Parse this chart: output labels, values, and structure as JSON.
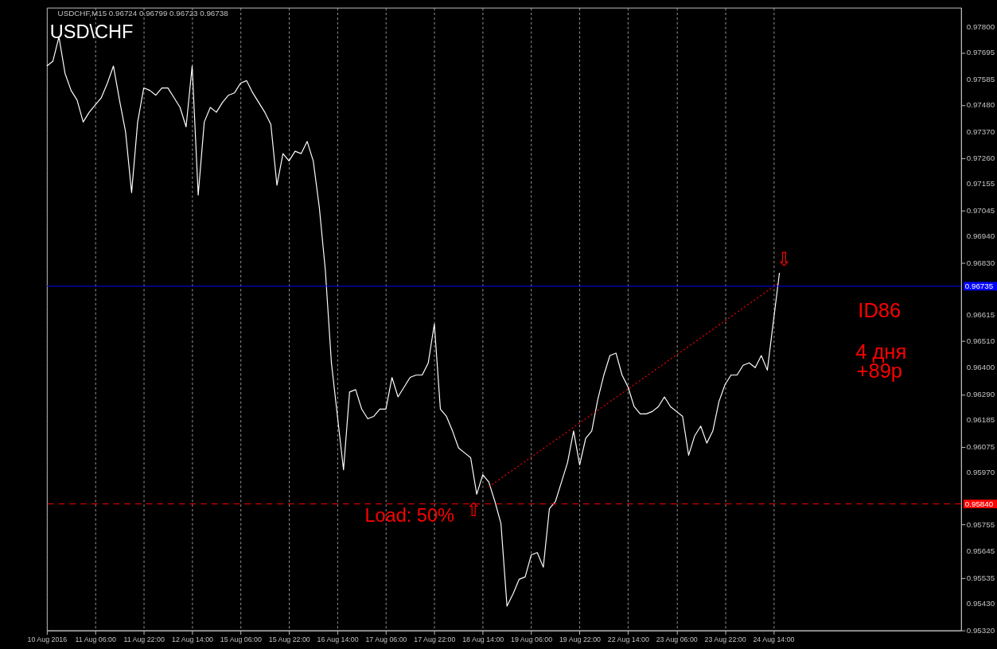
{
  "chart_data": {
    "type": "line",
    "title": "USD\\CHF",
    "subtitle": "USDCHF,M15  0.96724 0.96799 0.96723 0.96738",
    "categories": [
      "10 Aug 2016",
      null,
      null,
      null,
      null,
      null,
      null,
      null,
      "11 Aug 06:00",
      null,
      null,
      null,
      null,
      null,
      null,
      null,
      "11 Aug 22:00",
      null,
      null,
      null,
      null,
      null,
      null,
      null,
      "12 Aug 14:00",
      null,
      null,
      null,
      null,
      null,
      null,
      null,
      "15 Aug 06:00",
      null,
      null,
      null,
      null,
      null,
      null,
      null,
      "15 Aug 22:00",
      null,
      null,
      null,
      null,
      null,
      null,
      null,
      "16 Aug 14:00",
      null,
      null,
      null,
      null,
      null,
      null,
      null,
      "17 Aug 06:00",
      null,
      null,
      null,
      null,
      null,
      null,
      null,
      "17 Aug 22:00",
      null,
      null,
      null,
      null,
      null,
      null,
      null,
      "18 Aug 14:00",
      null,
      null,
      null,
      null,
      null,
      null,
      null,
      "19 Aug 06:00",
      null,
      null,
      null,
      null,
      null,
      null,
      null,
      "19 Aug 22:00",
      null,
      null,
      null,
      null,
      null,
      null,
      null,
      "22 Aug 14:00",
      null,
      null,
      null,
      null,
      null,
      null,
      null,
      "23 Aug 06:00",
      null,
      null,
      null,
      null,
      null,
      null,
      null,
      "23 Aug 22:00",
      null,
      null,
      null,
      null,
      null,
      null,
      null,
      "24 Aug 14:00",
      null,
      null,
      null,
      null,
      null,
      null,
      null,
      null,
      null,
      null,
      null,
      null,
      null,
      null,
      null,
      null,
      null,
      null,
      null,
      null,
      null,
      null,
      null,
      null,
      null,
      null,
      null,
      null,
      null,
      null,
      null
    ],
    "ylim": [
      0.9532,
      0.9788
    ],
    "yticks": [
      {
        "value": 0.978,
        "label": "0.97800"
      },
      {
        "value": 0.97695,
        "label": "0.97695"
      },
      {
        "value": 0.97585,
        "label": "0.97585"
      },
      {
        "value": 0.9748,
        "label": "0.97480"
      },
      {
        "value": 0.9737,
        "label": "0.97370"
      },
      {
        "value": 0.9726,
        "label": "0.97260"
      },
      {
        "value": 0.97155,
        "label": "0.97155"
      },
      {
        "value": 0.97045,
        "label": "0.97045"
      },
      {
        "value": 0.9694,
        "label": "0.96940"
      },
      {
        "value": 0.9683,
        "label": "0.96830"
      },
      {
        "value": 0.96615,
        "label": "0.96615"
      },
      {
        "value": 0.9651,
        "label": "0.96510"
      },
      {
        "value": 0.964,
        "label": "0.96400"
      },
      {
        "value": 0.9629,
        "label": "0.96290"
      },
      {
        "value": 0.96185,
        "label": "0.96185"
      },
      {
        "value": 0.96075,
        "label": "0.96075"
      },
      {
        "value": 0.9597,
        "label": "0.95970"
      },
      {
        "value": 0.95755,
        "label": "0.95755"
      },
      {
        "value": 0.95645,
        "label": "0.95645"
      },
      {
        "value": 0.95535,
        "label": "0.95535"
      },
      {
        "value": 0.9543,
        "label": "0.95430"
      },
      {
        "value": 0.9532,
        "label": "0.95320"
      }
    ],
    "grid": "x",
    "marker": "none",
    "series": [
      {
        "color": "#ffffff",
        "line_style": "solid",
        "values": [
          0.9764,
          0.9766,
          0.9776,
          0.9761,
          0.9754,
          0.975,
          0.9741,
          0.9745,
          0.9748,
          0.9751,
          0.9757,
          0.9764,
          0.975,
          0.9737,
          0.9712,
          0.9741,
          0.9755,
          0.9754,
          0.9752,
          0.9755,
          0.9755,
          0.9751,
          0.9747,
          0.9739,
          0.9764,
          0.9711,
          0.9741,
          0.9747,
          0.9745,
          0.9749,
          0.9752,
          0.9753,
          0.9757,
          0.9758,
          0.9753,
          0.9749,
          0.9745,
          0.974,
          0.9715,
          0.9728,
          0.9725,
          0.9729,
          0.9728,
          0.9733,
          0.9725,
          0.9706,
          0.968,
          0.9642,
          0.962,
          0.9598,
          0.963,
          0.9631,
          0.9623,
          0.9619,
          0.962,
          0.9623,
          0.9623,
          0.9636,
          0.9628,
          0.9632,
          0.9636,
          0.9637,
          0.9637,
          0.9642,
          0.9658,
          0.9623,
          0.962,
          0.9614,
          0.9607,
          0.9605,
          0.9603,
          0.9588,
          0.9596,
          0.9593,
          0.9585,
          0.9576,
          0.9542,
          0.9547,
          0.9553,
          0.9554,
          0.9563,
          0.9564,
          0.9558,
          0.9582,
          0.9585,
          0.9593,
          0.9601,
          0.9614,
          0.96,
          0.9611,
          0.9614,
          0.9627,
          0.9637,
          0.9645,
          0.9646,
          0.9637,
          0.9632,
          0.9624,
          0.9621,
          0.9621,
          0.9622,
          0.9624,
          0.9628,
          0.9624,
          0.9622,
          0.962,
          0.9604,
          0.9612,
          0.9616,
          0.9609,
          0.9614,
          0.9626,
          0.9633,
          0.9637,
          0.9637,
          0.9641,
          0.9642,
          0.964,
          0.9645,
          0.9639,
          0.9659,
          0.9679,
          null,
          null,
          null,
          null,
          null,
          null,
          null,
          null,
          null,
          null,
          null,
          null,
          null,
          null,
          null,
          null,
          null,
          null,
          null,
          null,
          null,
          null,
          null,
          null,
          null,
          null,
          null,
          null,
          null,
          null
        ]
      },
      {
        "color": "#ff0000",
        "line_style": "dotted",
        "values": [
          null,
          null,
          null,
          null,
          null,
          null,
          null,
          null,
          null,
          null,
          null,
          null,
          null,
          null,
          null,
          null,
          null,
          null,
          null,
          null,
          null,
          null,
          null,
          null,
          null,
          null,
          null,
          null,
          null,
          null,
          null,
          null,
          null,
          null,
          null,
          null,
          null,
          null,
          null,
          null,
          null,
          null,
          null,
          null,
          null,
          null,
          null,
          null,
          null,
          null,
          null,
          null,
          null,
          null,
          null,
          null,
          null,
          null,
          null,
          null,
          null,
          null,
          null,
          null,
          null,
          null,
          null,
          null,
          null,
          null,
          null,
          null,
          null,
          0.9591,
          null,
          null,
          null,
          null,
          null,
          null,
          null,
          null,
          null,
          null,
          null,
          null,
          null,
          null,
          null,
          null,
          null,
          null,
          null,
          null,
          null,
          null,
          null,
          null,
          null,
          null,
          null,
          null,
          null,
          null,
          null,
          null,
          null,
          null,
          null,
          null,
          null,
          null,
          null,
          null,
          null,
          null,
          null,
          null,
          null,
          null,
          null,
          0.9675,
          null,
          null,
          null,
          null,
          null,
          null,
          null,
          null,
          null,
          null,
          null,
          null,
          null,
          null,
          null,
          null,
          null,
          null,
          null,
          null,
          null,
          null,
          null,
          null,
          null,
          null,
          null,
          null,
          null,
          null
        ]
      }
    ],
    "ref_lines": [
      {
        "axis": "y",
        "value": 0.96735,
        "label": "0.96735",
        "color": "#0000ff",
        "line_style": "solid"
      },
      {
        "axis": "y",
        "value": 0.9584,
        "label": "0.95840",
        "color": "#ff0000",
        "line_style": "dashed"
      }
    ],
    "annotations": [
      "Load: 50%",
      "ID86",
      "4 дня",
      "+89р",
      "⇧",
      "⇩"
    ]
  }
}
